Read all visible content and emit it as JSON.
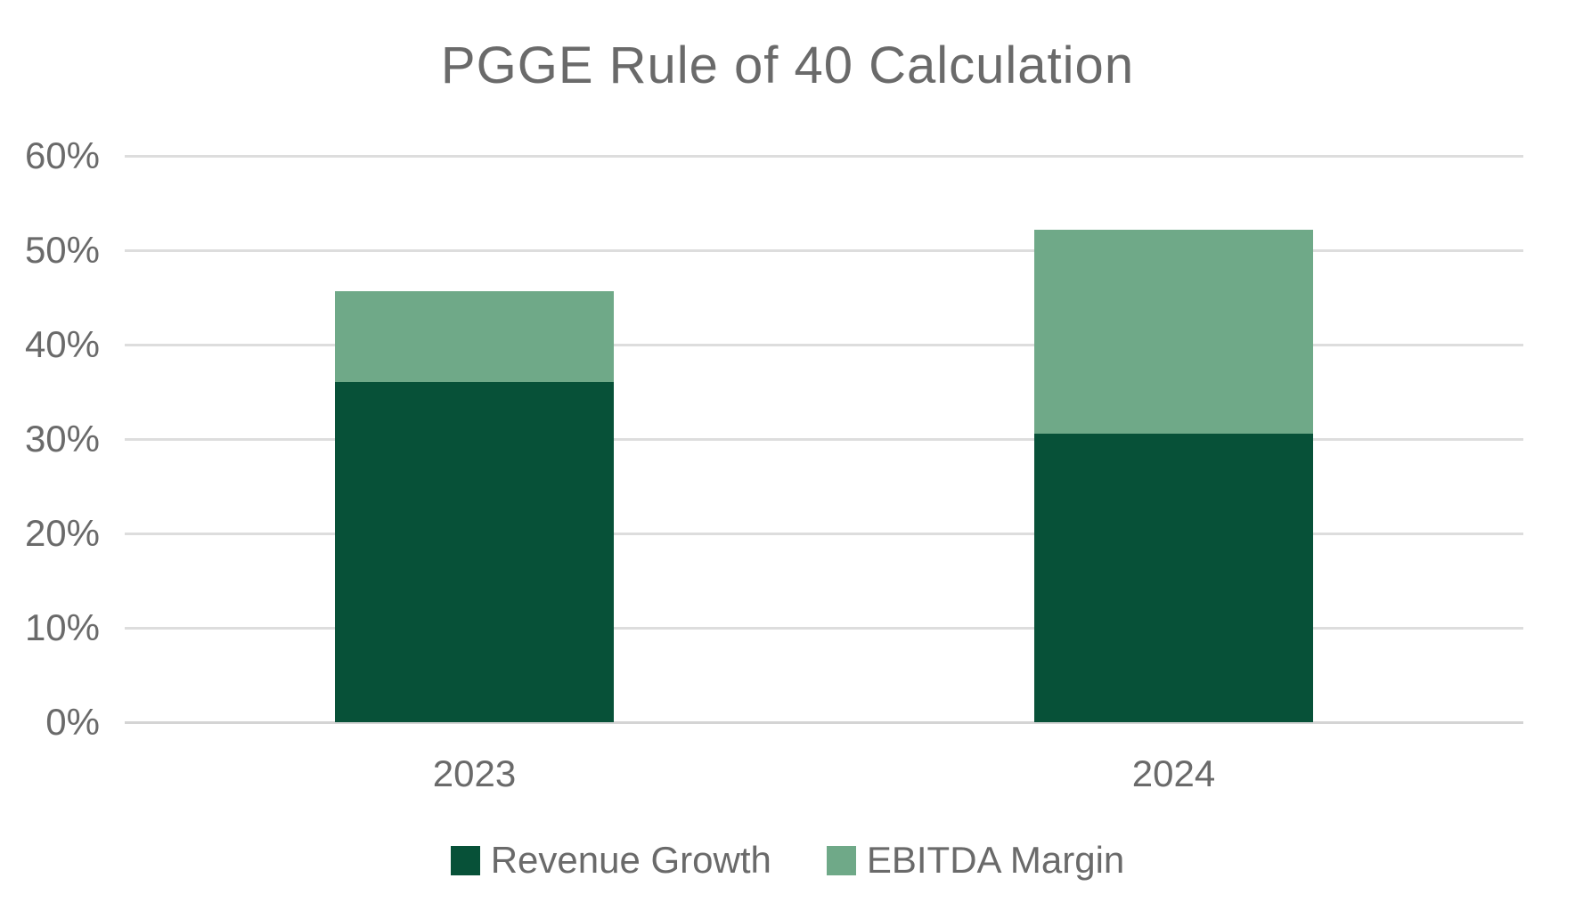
{
  "chart": {
    "title": "PGGE Rule of 40 Calculation"
  },
  "chart_data": {
    "type": "bar",
    "stacked": true,
    "title": "PGGE Rule of 40 Calculation",
    "xlabel": "",
    "ylabel": "",
    "categories": [
      "2023",
      "2024"
    ],
    "series": [
      {
        "name": "Revenue Growth",
        "values": [
          36.0,
          30.6
        ],
        "color": "#075138"
      },
      {
        "name": "EBITDA Margin",
        "values": [
          9.7,
          21.6
        ],
        "color": "#6FA988"
      }
    ],
    "totals": [
      45.7,
      52.2
    ],
    "ylim": [
      0,
      60
    ],
    "yticks": [
      0,
      10,
      20,
      30,
      40,
      50,
      60
    ],
    "ytick_labels": [
      "0%",
      "10%",
      "20%",
      "30%",
      "40%",
      "50%",
      "60%"
    ],
    "grid": true,
    "legend_position": "bottom"
  },
  "colors": {
    "background": "#ffffff",
    "text": "#6a6a6a",
    "gridline": "#dddddd",
    "axis_line": "#d4d4d4",
    "revenue_growth": "#075138",
    "ebitda_margin": "#6FA988"
  }
}
